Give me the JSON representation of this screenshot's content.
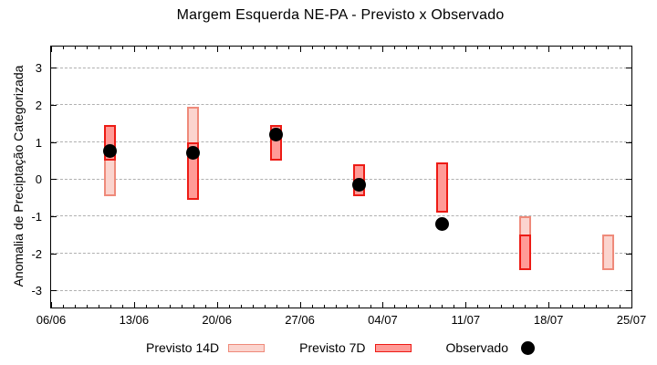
{
  "title": "Margem Esquerda NE-PA - Previsto x Observado",
  "y_axis": {
    "label": "Anomalia de Preciptação Categorizada",
    "tick_labels": [
      "3",
      "2",
      "1",
      "0",
      "-1",
      "-2",
      "-3"
    ],
    "tick_values": [
      3,
      2,
      1,
      0,
      -1,
      -2,
      -3
    ]
  },
  "x_axis": {
    "tick_labels": [
      "06/06",
      "13/06",
      "20/06",
      "27/06",
      "04/07",
      "11/07",
      "18/07",
      "25/07"
    ],
    "tick_days": [
      0,
      7,
      14,
      21,
      28,
      35,
      42,
      49
    ]
  },
  "legend": {
    "previsto_14d_label": "Previsto 14D",
    "previsto_7d_label": "Previsto 7D",
    "observado_label": "Observado"
  },
  "colors": {
    "previsto_14d_fill": "#fbd4ce",
    "previsto_14d_border": "#ef8a7a",
    "previsto_7d_fill": "#ff9b97",
    "previsto_7d_border": "#ed1b15",
    "observado": "#000000",
    "grid": "#b0b0b0",
    "axis": "#000000"
  },
  "chart_data": {
    "type": "bar",
    "title": "Margem Esquerda NE-PA - Previsto x Observado",
    "xlabel": "",
    "ylabel": "Anomalia de Preciptação Categorizada",
    "ylim": [
      -3.5,
      3.6
    ],
    "x_range_dates": [
      "06/06",
      "25/07"
    ],
    "grid": "horizontal dashed lines at integer values -3..3",
    "legend_position": "bottom",
    "series_names": [
      "Previsto 14D",
      "Previsto 7D",
      "Observado"
    ],
    "groups": [
      {
        "date": "11/06",
        "day": 5,
        "previsto_14d": [
          -0.45,
          1.45
        ],
        "previsto_7d": [
          0.5,
          1.45
        ],
        "observado": 0.75
      },
      {
        "date": "18/06",
        "day": 12,
        "previsto_14d": [
          -0.55,
          1.95
        ],
        "previsto_7d": [
          -0.55,
          1.0
        ],
        "observado": 0.7
      },
      {
        "date": "25/06",
        "day": 19,
        "previsto_14d": null,
        "previsto_7d": [
          0.5,
          1.45
        ],
        "observado": 1.2
      },
      {
        "date": "02/07",
        "day": 26,
        "previsto_14d": null,
        "previsto_7d": [
          -0.45,
          0.4
        ],
        "observado": -0.15
      },
      {
        "date": "09/07",
        "day": 33,
        "previsto_14d": null,
        "previsto_7d": [
          -0.9,
          0.45
        ],
        "observado": -1.2
      },
      {
        "date": "16/07",
        "day": 40,
        "previsto_14d": [
          -2.45,
          -1.0
        ],
        "previsto_7d": [
          -2.45,
          -1.5
        ],
        "observado": null
      },
      {
        "date": "23/07",
        "day": 47,
        "previsto_14d": [
          -2.45,
          -1.5
        ],
        "previsto_7d": null,
        "observado": null
      }
    ]
  }
}
